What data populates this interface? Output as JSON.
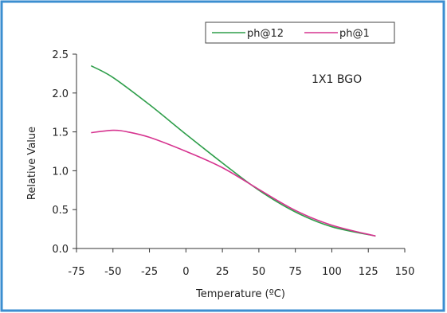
{
  "chart_data": {
    "type": "line",
    "xlabel": "Temperature (ºC)",
    "ylabel": "Relative Value",
    "xlim": [
      -75,
      150
    ],
    "ylim": [
      0.0,
      2.5
    ],
    "xticks": [
      -75,
      -50,
      -25,
      0,
      25,
      50,
      75,
      100,
      125,
      150
    ],
    "xtick_labels": [
      "-75",
      "-50",
      "-25",
      "0",
      "25",
      "50",
      "75",
      "100",
      "125",
      "150"
    ],
    "yticks": [
      0.0,
      0.5,
      1.0,
      1.5,
      2.0,
      2.5
    ],
    "ytick_labels": [
      "0.0",
      "0.5",
      "1.0",
      "1.5",
      "2.0",
      "2.5"
    ],
    "annotation": "1X1 BGO",
    "legend_position": "top-right",
    "grid": false,
    "frame_color": "#3b8ed0",
    "series": [
      {
        "name": "ph@12",
        "color": "#2e9e4a",
        "x": [
          -65,
          -50,
          -25,
          0,
          25,
          50,
          75,
          100,
          130
        ],
        "y": [
          2.35,
          2.2,
          1.85,
          1.47,
          1.1,
          0.75,
          0.47,
          0.28,
          0.16
        ]
      },
      {
        "name": "ph@1",
        "color": "#d6338f",
        "x": [
          -65,
          -50,
          -40,
          -25,
          0,
          25,
          50,
          75,
          100,
          130
        ],
        "y": [
          1.49,
          1.52,
          1.5,
          1.43,
          1.25,
          1.04,
          0.76,
          0.49,
          0.3,
          0.16
        ]
      }
    ]
  }
}
